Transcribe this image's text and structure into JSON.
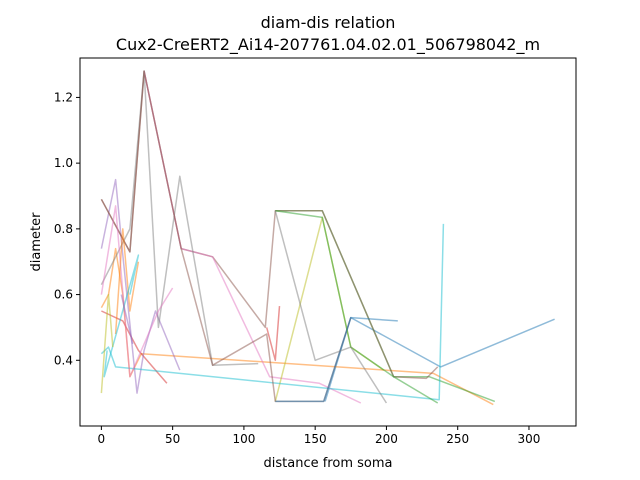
{
  "chart_data": {
    "type": "line",
    "title_line1": "diam-dis relation",
    "title_line2": "Cux2-CreERT2_Ai14-207761.04.02.01_506798042_m",
    "xlabel": "distance from soma",
    "ylabel": "diameter",
    "xlim": [
      -15,
      333
    ],
    "ylim": [
      0.2,
      1.32
    ],
    "xticks": [
      0,
      50,
      100,
      150,
      200,
      250,
      300
    ],
    "yticks": [
      0.4,
      0.6,
      0.8,
      1.0,
      1.2
    ],
    "xtick_labels": [
      "0",
      "50",
      "100",
      "150",
      "200",
      "250",
      "300"
    ],
    "ytick_labels": [
      "0.4",
      "0.6",
      "0.8",
      "1.0",
      "1.2"
    ],
    "grid": false,
    "legend": "none",
    "series": [
      {
        "color": "#1f77b4",
        "x": [
          157,
          175,
          238,
          318
        ],
        "y": [
          0.275,
          0.53,
          0.38,
          0.525
        ]
      },
      {
        "color": "#ff7f0e",
        "x": [
          0,
          5,
          10,
          15,
          20,
          28,
          233,
          275
        ],
        "y": [
          0.56,
          0.6,
          0.74,
          0.6,
          0.35,
          0.42,
          0.36,
          0.265
        ]
      },
      {
        "color": "#2ca02c",
        "x": [
          122,
          155,
          205,
          230,
          276
        ],
        "y": [
          0.855,
          0.855,
          0.35,
          0.35,
          0.275
        ]
      },
      {
        "color": "#d62728",
        "x": [
          0,
          15,
          26,
          46
        ],
        "y": [
          0.55,
          0.52,
          0.43,
          0.33
        ]
      },
      {
        "color": "#9467bd",
        "x": [
          0,
          10,
          15,
          25,
          30,
          38,
          55
        ],
        "y": [
          0.74,
          0.95,
          0.72,
          0.3,
          0.43,
          0.55,
          0.37
        ]
      },
      {
        "color": "#8c564b",
        "x": [
          0,
          20,
          30,
          56,
          78,
          115,
          122,
          155,
          205,
          228,
          236
        ],
        "y": [
          0.89,
          0.73,
          1.28,
          0.74,
          0.715,
          0.5,
          0.855,
          0.855,
          0.35,
          0.345,
          0.38
        ]
      },
      {
        "color": "#e377c2",
        "x": [
          30,
          56,
          78,
          118,
          153,
          182
        ],
        "y": [
          1.28,
          0.74,
          0.715,
          0.35,
          0.33,
          0.27
        ]
      },
      {
        "color": "#7f7f7f",
        "x": [
          0,
          20,
          30,
          40,
          55,
          78,
          110
        ],
        "y": [
          0.63,
          0.8,
          1.28,
          0.5,
          0.96,
          0.385,
          0.39
        ]
      },
      {
        "color": "#bcbd22",
        "x": [
          122,
          155,
          175,
          198
        ],
        "y": [
          0.275,
          0.835,
          0.44,
          0.37
        ]
      },
      {
        "color": "#17becf",
        "x": [
          0,
          5,
          10,
          237,
          240
        ],
        "y": [
          0.42,
          0.44,
          0.38,
          0.28,
          0.815
        ]
      },
      {
        "color": "#8c564b",
        "x": [
          0,
          20,
          30,
          56,
          78,
          116,
          122,
          156,
          175
        ],
        "y": [
          0.89,
          0.73,
          1.28,
          0.74,
          0.385,
          0.48,
          0.275,
          0.275,
          0.53
        ]
      },
      {
        "color": "#2ca02c",
        "x": [
          122,
          155,
          175,
          205,
          236
        ],
        "y": [
          0.855,
          0.835,
          0.44,
          0.35,
          0.27
        ]
      },
      {
        "color": "#1f77b4",
        "x": [
          122,
          156,
          175,
          208
        ],
        "y": [
          0.275,
          0.275,
          0.53,
          0.52
        ]
      },
      {
        "color": "#e377c2",
        "x": [
          0,
          10,
          20,
          30,
          40,
          50
        ],
        "y": [
          0.6,
          0.87,
          0.35,
          0.45,
          0.55,
          0.62
        ]
      },
      {
        "color": "#7f7f7f",
        "x": [
          122,
          150,
          175,
          200
        ],
        "y": [
          0.855,
          0.4,
          0.44,
          0.27
        ]
      },
      {
        "color": "#d62728",
        "x": [
          116,
          122,
          125
        ],
        "y": [
          0.5,
          0.4,
          0.565
        ]
      },
      {
        "color": "#ff7f0e",
        "x": [
          10,
          15,
          20,
          26
        ],
        "y": [
          0.48,
          0.8,
          0.55,
          0.7
        ]
      },
      {
        "color": "#17becf",
        "x": [
          20,
          26,
          2,
          4
        ],
        "y": [
          0.6,
          0.72,
          0.35,
          0.43
        ]
      },
      {
        "color": "#bcbd22",
        "x": [
          0,
          5,
          8
        ],
        "y": [
          0.3,
          0.6,
          0.44
        ]
      },
      {
        "color": "#9467bd",
        "x": [
          14,
          22
        ],
        "y": [
          0.6,
          0.45
        ]
      }
    ]
  }
}
